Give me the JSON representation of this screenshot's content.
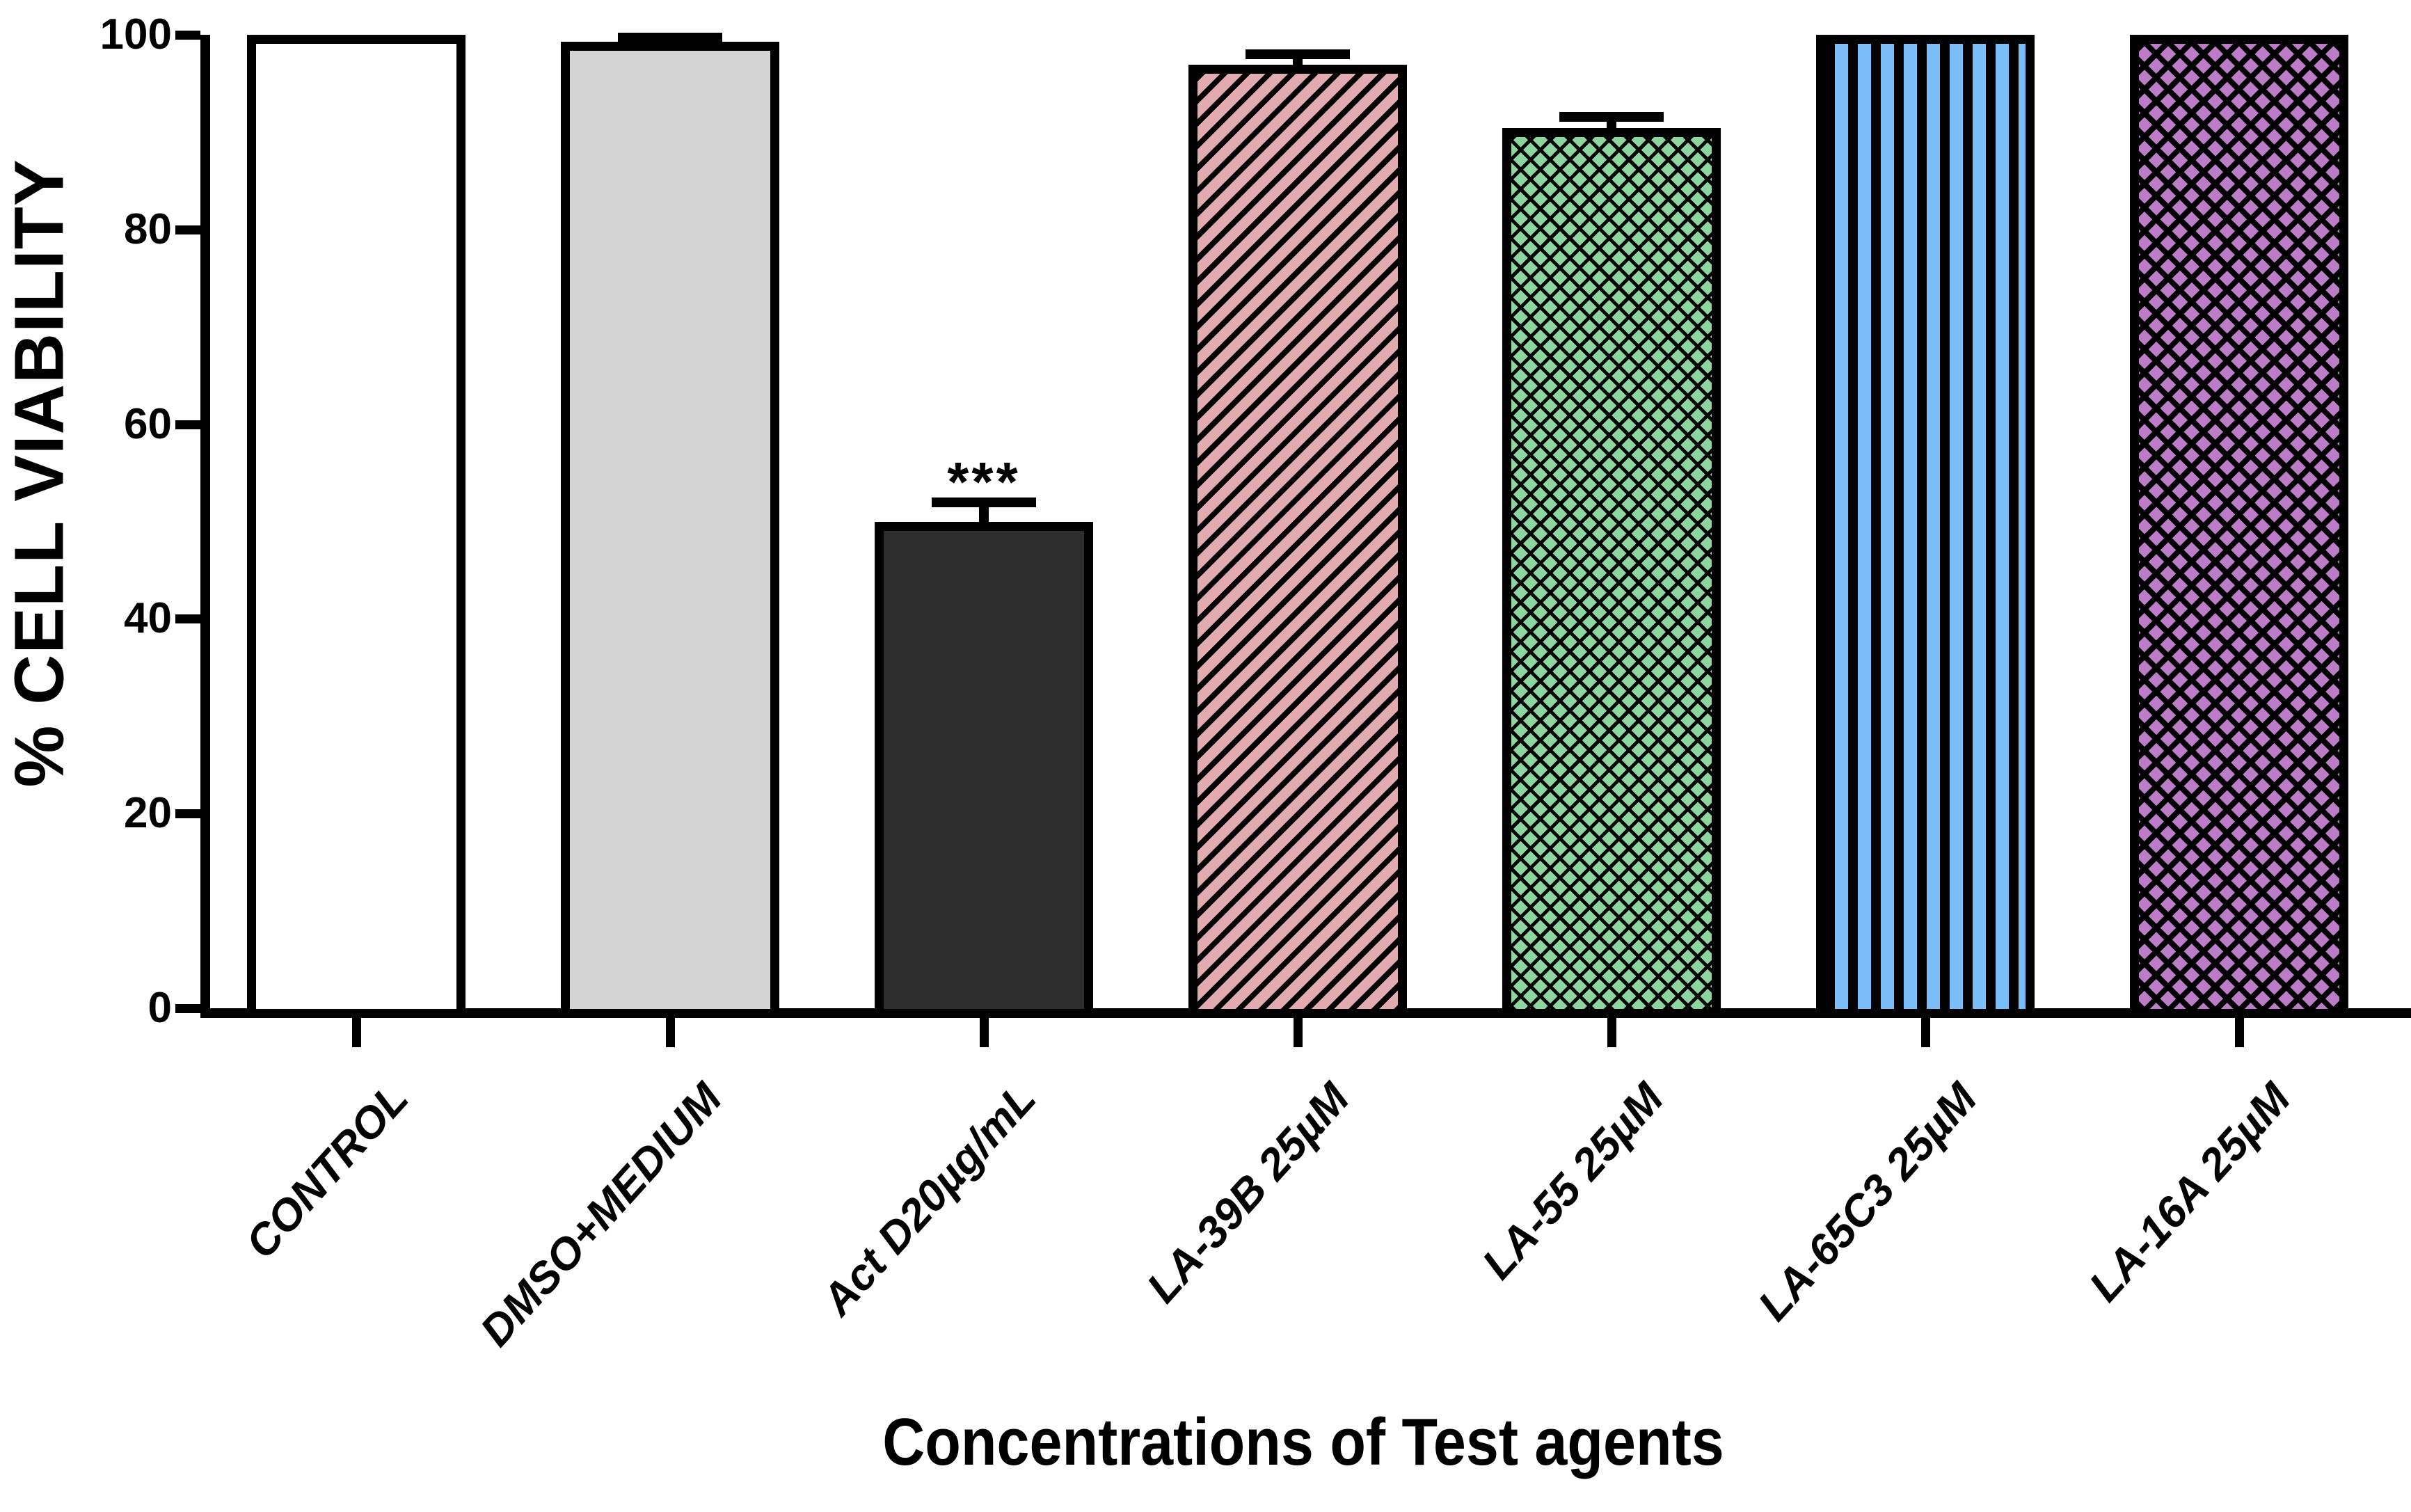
{
  "figure": {
    "y_axis": {
      "label": "% CELL VIABILITY",
      "ticks": [
        0,
        20,
        40,
        60,
        80,
        100
      ]
    },
    "x_axis": {
      "label": "Concentrations of Test agents"
    }
  },
  "chart_data": {
    "type": "bar",
    "title": "",
    "xlabel": "Concentrations of Test agents",
    "ylabel": "% CELL VIABILITY",
    "ylim": [
      0,
      100
    ],
    "yticks": [
      0,
      20,
      40,
      60,
      80,
      100
    ],
    "grid": false,
    "legend": "none",
    "categories": [
      "CONTROL",
      "DMSO+MEDIUM",
      "Act D20µg/mL",
      "LA-39B 25µM",
      "LA-55 25µM",
      "LA-65C3 25µM",
      "LA-16A 25µM"
    ],
    "values": [
      100,
      99.3,
      50.0,
      96.9,
      90.4,
      100,
      100
    ],
    "errors": [
      0,
      0.4,
      2.0,
      1.1,
      1.2,
      0,
      0
    ],
    "annotations": [
      "",
      "",
      "***",
      "",
      "",
      "",
      ""
    ],
    "bar_styles": [
      {
        "name": "solid-white",
        "pattern": "solid",
        "fill": "#ffffff",
        "hatch": "#000000"
      },
      {
        "name": "solid-light-gray",
        "pattern": "solid",
        "fill": "#d4d4d4",
        "hatch": "#000000"
      },
      {
        "name": "solid-dark-gray",
        "pattern": "solid",
        "fill": "#2d2d2d",
        "hatch": "#000000"
      },
      {
        "name": "diagonal-hatch-pink",
        "pattern": "diagonal",
        "fill": "#e2abb0",
        "hatch": "#000000"
      },
      {
        "name": "weave-hatch-green",
        "pattern": "weave",
        "fill": "#8ed6a0",
        "hatch": "#000000"
      },
      {
        "name": "vertical-stripes-blue",
        "pattern": "vertical",
        "fill": "#7abdf8",
        "hatch": "#000000"
      },
      {
        "name": "diamond-lattice-purple",
        "pattern": "diamond",
        "fill": "#bd7cc8",
        "hatch": "#000000"
      }
    ]
  }
}
